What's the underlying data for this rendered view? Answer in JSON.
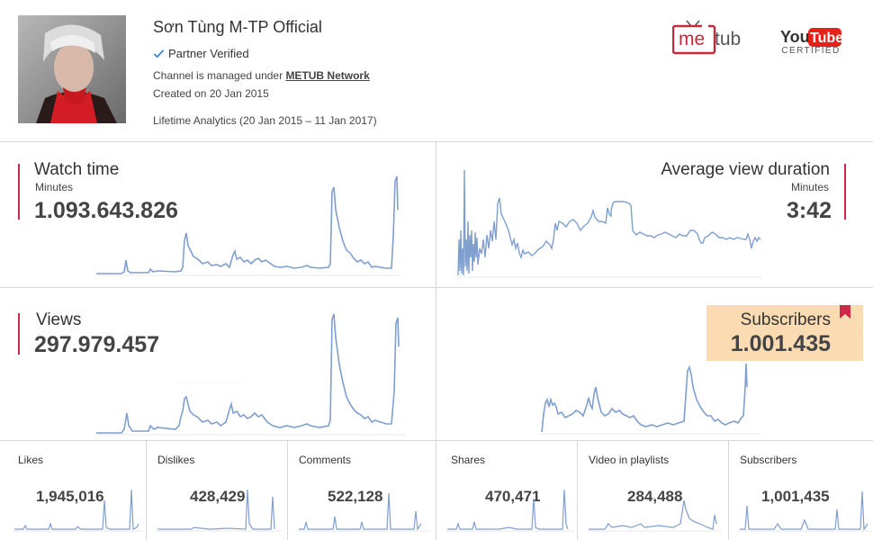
{
  "channel": {
    "name": "Sơn Tùng M-TP Official",
    "verified_label": "Partner Verified",
    "managed_prefix": "Channel is managed under ",
    "network": "METUB Network",
    "created": "Created on 20 Jan 2015",
    "lifetime": "Lifetime Analytics (20 Jan 2015 – 11 Jan 2017)"
  },
  "logos": {
    "metub": {
      "part1": "me",
      "part2": "tub"
    },
    "youtube": {
      "you": "You",
      "tube": "Tube",
      "certified": "CERTIFIED"
    }
  },
  "panels": {
    "watch_time": {
      "title": "Watch time",
      "unit": "Minutes",
      "value": "1.093.643.826"
    },
    "avg_view_duration": {
      "title": "Average view duration",
      "unit": "Minutes",
      "value": "3:42"
    },
    "views": {
      "title": "Views",
      "value": "297.979.457"
    },
    "subscribers": {
      "title": "Subscribers",
      "value": "1.001.435"
    }
  },
  "stats": [
    {
      "label": "Likes",
      "value": "1,945,016"
    },
    {
      "label": "Dislikes",
      "value": "428,429"
    },
    {
      "label": "Comments",
      "value": "522,128"
    },
    {
      "label": "Shares",
      "value": "470,471"
    },
    {
      "label": "Video in playlists",
      "value": "284,488"
    },
    {
      "label": "Subscribers",
      "value": "1,001,435"
    }
  ],
  "colors": {
    "accent": "#d0284a",
    "chart_line": "#7f9fcf",
    "highlight": "#fbdcb2",
    "youtube_red": "#e62117"
  },
  "icons": {
    "verified": "check-icon",
    "badge": "bookmark-icon"
  }
}
